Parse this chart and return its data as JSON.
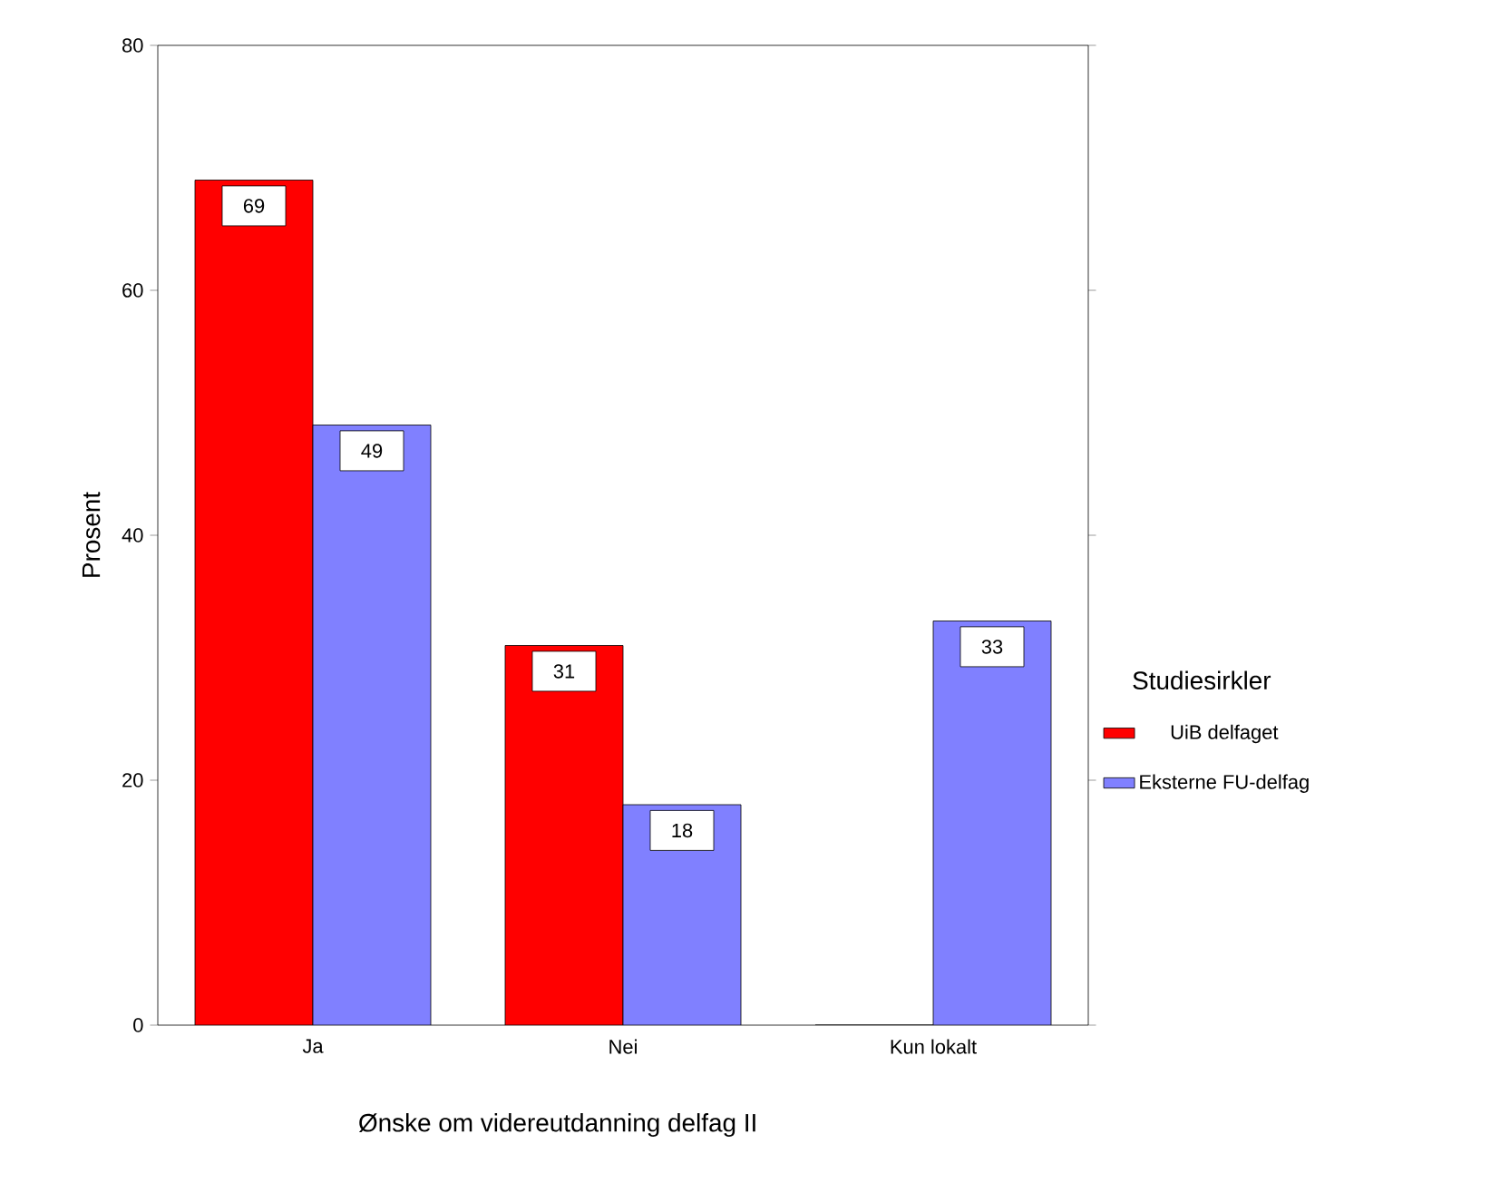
{
  "chart_data": {
    "type": "bar",
    "xlabel": "Ønske om videreutdanning delfag II",
    "ylabel": "Prosent",
    "legend_title": "Studiesirkler",
    "categories": [
      "Ja",
      "Nei",
      "Kun lokalt"
    ],
    "series": [
      {
        "name": "UiB delfaget",
        "color": "#ff0000",
        "values": [
          69,
          31,
          0
        ],
        "value_labels": [
          "69",
          "31",
          null
        ]
      },
      {
        "name": "Eksterne FU-delfag",
        "color": "#8080ff",
        "values": [
          49,
          18,
          33
        ],
        "value_labels": [
          "49",
          "18",
          "33"
        ]
      }
    ],
    "ylim": [
      0,
      80
    ],
    "yticks": [
      0,
      20,
      40,
      60,
      80
    ],
    "grid": false,
    "legend": "right"
  }
}
